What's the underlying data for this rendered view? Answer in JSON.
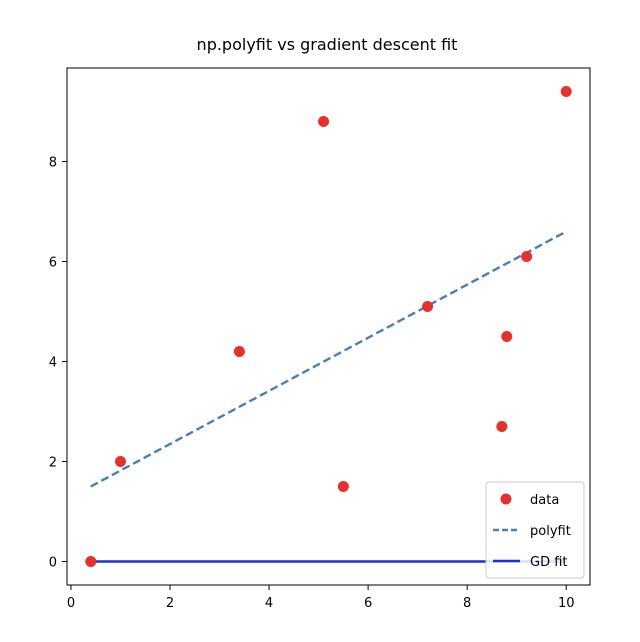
{
  "chart_data": {
    "type": "scatter",
    "title": "np.polyfit vs gradient descent fit",
    "xlabel": "",
    "ylabel": "",
    "xlim": [
      -0.08,
      10.48
    ],
    "ylim": [
      -0.47,
      9.87
    ],
    "xticks": [
      0,
      2,
      4,
      6,
      8,
      10
    ],
    "yticks": [
      0,
      2,
      4,
      6,
      8
    ],
    "grid": false,
    "legend_position": "lower-right",
    "series": [
      {
        "name": "data",
        "kind": "points",
        "color": "#e8302a",
        "points": [
          {
            "x": 0.4,
            "y": 0.0
          },
          {
            "x": 1.0,
            "y": 2.0
          },
          {
            "x": 3.4,
            "y": 4.2
          },
          {
            "x": 5.1,
            "y": 8.8
          },
          {
            "x": 5.5,
            "y": 1.5
          },
          {
            "x": 7.2,
            "y": 5.1
          },
          {
            "x": 8.7,
            "y": 2.7
          },
          {
            "x": 8.8,
            "y": 4.5
          },
          {
            "x": 9.2,
            "y": 6.1
          },
          {
            "x": 10.0,
            "y": 9.4
          }
        ]
      },
      {
        "name": "polyfit",
        "kind": "dashed-line",
        "color": "#4a7fb5",
        "points": [
          {
            "x": 0.4,
            "y": 1.5
          },
          {
            "x": 10.0,
            "y": 6.6
          }
        ]
      },
      {
        "name": "GD fit",
        "kind": "solid-line",
        "color": "#1f2fd6",
        "points": [
          {
            "x": 0.4,
            "y": 0.0
          },
          {
            "x": 10.0,
            "y": 0.0
          }
        ]
      }
    ]
  }
}
